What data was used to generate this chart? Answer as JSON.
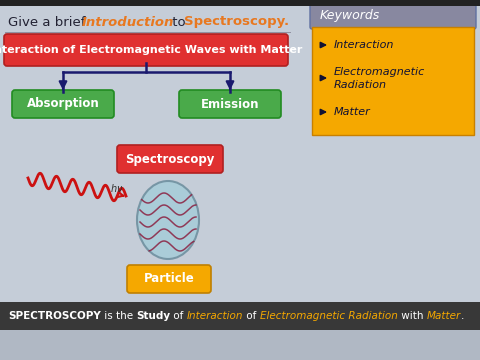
{
  "bg_color": "#c5cdd8",
  "title_text1": "Give a brief ",
  "title_text2": "Introduction",
  "title_text3": " to ",
  "title_text4": "Spectroscopy.",
  "main_box_text": "Interaction of Electromagnetic Waves with Matter",
  "main_box_color": "#e03030",
  "left_box_text": "Absorption",
  "left_box_color": "#4aaa4a",
  "right_box_text": "Emission",
  "right_box_color": "#4aaa4a",
  "spectroscopy_box_text": "Spectroscopy",
  "spectroscopy_box_color": "#e03030",
  "particle_box_text": "Particle",
  "particle_box_color": "#f5a800",
  "keywords_bg": "#f5a800",
  "keywords_title_bg": "#8888a0",
  "keywords_title": "Keywords",
  "keywords": [
    "Interaction",
    "Electromagnetic\nRadiation",
    "Matter"
  ],
  "footer_bg": "#383838",
  "arrow_color": "#1a1a6e",
  "wave_color": "#cc1111",
  "particle_fill": "#a8ccd8",
  "particle_edge": "#7090a0",
  "wave_inner_color": "#8b2040",
  "orange_color": "#e87820",
  "green_edge": "#228B22",
  "title_color": "#222233"
}
